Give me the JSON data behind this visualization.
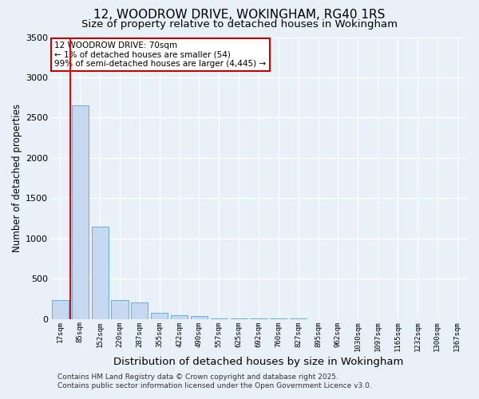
{
  "title_line1": "12, WOODROW DRIVE, WOKINGHAM, RG40 1RS",
  "title_line2": "Size of property relative to detached houses in Wokingham",
  "xlabel": "Distribution of detached houses by size in Wokingham",
  "ylabel": "Number of detached properties",
  "categories": [
    "17sqm",
    "85sqm",
    "152sqm",
    "220sqm",
    "287sqm",
    "355sqm",
    "422sqm",
    "490sqm",
    "557sqm",
    "625sqm",
    "692sqm",
    "760sqm",
    "827sqm",
    "895sqm",
    "962sqm",
    "1030sqm",
    "1097sqm",
    "1165sqm",
    "1232sqm",
    "1300sqm",
    "1367sqm"
  ],
  "values": [
    230,
    2650,
    1150,
    230,
    200,
    80,
    50,
    40,
    10,
    5,
    3,
    2,
    2,
    1,
    1,
    1,
    1,
    1,
    1,
    1,
    0
  ],
  "bar_color": "#c5d8ef",
  "bar_edge_color": "#6aaed6",
  "background_color": "#e8f0f8",
  "grid_color": "#ffffff",
  "red_line_x": 0.5,
  "annotation_text": "12 WOODROW DRIVE: 70sqm\n← 1% of detached houses are smaller (54)\n99% of semi-detached houses are larger (4,445) →",
  "annotation_box_facecolor": "#ffffff",
  "annotation_box_edgecolor": "#cc0000",
  "ylim": [
    0,
    3500
  ],
  "yticks": [
    0,
    500,
    1000,
    1500,
    2000,
    2500,
    3000,
    3500
  ],
  "footer_line1": "Contains HM Land Registry data © Crown copyright and database right 2025.",
  "footer_line2": "Contains public sector information licensed under the Open Government Licence v3.0.",
  "title_fontsize": 11,
  "subtitle_fontsize": 9.5,
  "ylabel_fontsize": 8.5,
  "xlabel_fontsize": 9.5,
  "tick_fontsize": 6.5,
  "annotation_fontsize": 7.5,
  "footer_fontsize": 6.5
}
